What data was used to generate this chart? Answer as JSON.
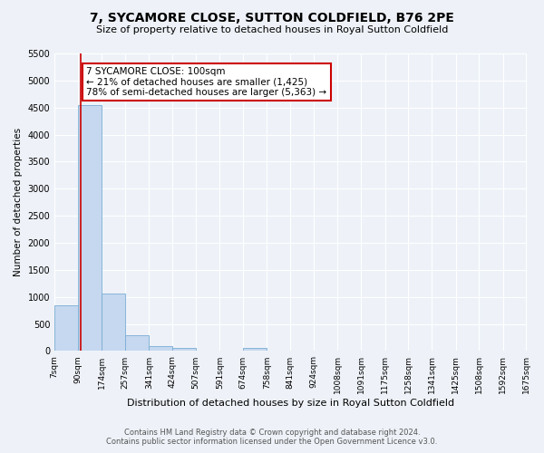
{
  "title": "7, SYCAMORE CLOSE, SUTTON COLDFIELD, B76 2PE",
  "subtitle": "Size of property relative to detached houses in Royal Sutton Coldfield",
  "xlabel": "Distribution of detached houses by size in Royal Sutton Coldfield",
  "ylabel": "Number of detached properties",
  "footer_line1": "Contains HM Land Registry data © Crown copyright and database right 2024.",
  "footer_line2": "Contains public sector information licensed under the Open Government Licence v3.0.",
  "bins": [
    7,
    90,
    174,
    257,
    341,
    424,
    507,
    591,
    674,
    758,
    841,
    924,
    1008,
    1091,
    1175,
    1258,
    1341,
    1425,
    1508,
    1592,
    1675
  ],
  "bin_labels": [
    "7sqm",
    "90sqm",
    "174sqm",
    "257sqm",
    "341sqm",
    "424sqm",
    "507sqm",
    "591sqm",
    "674sqm",
    "758sqm",
    "841sqm",
    "924sqm",
    "1008sqm",
    "1091sqm",
    "1175sqm",
    "1258sqm",
    "1341sqm",
    "1425sqm",
    "1508sqm",
    "1592sqm",
    "1675sqm"
  ],
  "bar_heights": [
    850,
    4550,
    1060,
    290,
    95,
    55,
    0,
    0,
    55,
    0,
    0,
    0,
    0,
    0,
    0,
    0,
    0,
    0,
    0,
    0
  ],
  "bar_color": "#c5d8ef",
  "bar_edge_color": "#7aadd4",
  "property_line_x": 100,
  "property_line_color": "#cc0000",
  "ylim": [
    0,
    5500
  ],
  "yticks": [
    0,
    500,
    1000,
    1500,
    2000,
    2500,
    3000,
    3500,
    4000,
    4500,
    5000,
    5500
  ],
  "annotation_text": "7 SYCAMORE CLOSE: 100sqm\n← 21% of detached houses are smaller (1,425)\n78% of semi-detached houses are larger (5,363) →",
  "annotation_box_color": "#ffffff",
  "annotation_box_edge_color": "#cc0000",
  "bg_color": "#eef2f8",
  "grid_color": "#ffffff"
}
